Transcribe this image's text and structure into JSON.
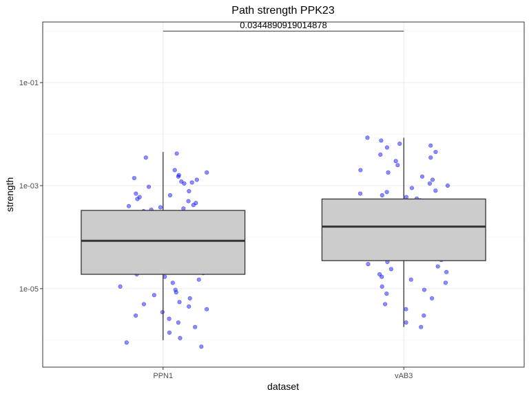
{
  "chart_data": {
    "type": "box",
    "title": "Path strength PPK23",
    "xlabel": "dataset",
    "ylabel": "strength",
    "y_scale": "log10",
    "ylim": [
      3e-07,
      1.5
    ],
    "y_ticks": [
      1e-05,
      0.001,
      0.1
    ],
    "y_tick_labels": [
      "1e-05",
      "1e-03",
      "1e-01"
    ],
    "grid": true,
    "categories": [
      "PPN1",
      "vAB3"
    ],
    "boxes": [
      {
        "category": "PPN1",
        "whisker_low": 1e-06,
        "q1": 1.9e-05,
        "median": 8.5e-05,
        "q3": 0.00033,
        "whisker_high": 0.0045
      },
      {
        "category": "vAB3",
        "whisker_low": 1.8e-06,
        "q1": 3.5e-05,
        "median": 0.00016,
        "q3": 0.00055,
        "whisker_high": 0.0085
      }
    ],
    "annotation": {
      "text": "0.0344890919014878",
      "from": "PPN1",
      "to": "vAB3",
      "y": 1.0
    },
    "point_color": "#0000ff",
    "box_fill": "#cccccc",
    "points": [
      {
        "category": "PPN1",
        "values": [
          0.0042,
          0.0035,
          0.002,
          0.0018,
          0.0016,
          0.0015,
          0.0014,
          0.0013,
          0.0012,
          0.00115,
          0.0011,
          0.00095,
          0.00078,
          0.0007,
          0.00065,
          0.0006,
          0.00055,
          0.0005,
          0.00046,
          0.00042,
          0.0004,
          0.00038,
          0.00036,
          0.00034,
          0.00032,
          0.0003,
          0.00028,
          0.00027,
          0.00026,
          0.00025,
          0.00024,
          0.00023,
          0.00022,
          0.00021,
          0.0002,
          0.00019,
          0.00018,
          0.00017,
          0.00016,
          0.00015,
          0.000145,
          0.00014,
          0.000135,
          0.00013,
          0.000125,
          0.00012,
          0.000115,
          0.00011,
          0.000105,
          0.0001,
          9.6e-05,
          9.2e-05,
          8.8e-05,
          8.4e-05,
          8e-05,
          7.7e-05,
          7.4e-05,
          7.1e-05,
          6.8e-05,
          6.5e-05,
          6.2e-05,
          6e-05,
          5.8e-05,
          5.6e-05,
          5.4e-05,
          5.2e-05,
          5e-05,
          4.8e-05,
          4.6e-05,
          4.4e-05,
          4.2e-05,
          4e-05,
          3.8e-05,
          3.6e-05,
          3.4e-05,
          3.2e-05,
          3e-05,
          2.8e-05,
          2.6e-05,
          2.4e-05,
          2.2e-05,
          2e-05,
          1.9e-05,
          1.7e-05,
          1.5e-05,
          1.3e-05,
          1.1e-05,
          9.5e-06,
          8.5e-06,
          7.5e-06,
          6.5e-06,
          5.5e-06,
          5e-06,
          4.5e-06,
          4e-06,
          3.5e-06,
          3e-06,
          2.6e-06,
          2.2e-06,
          1.8e-06,
          1.4e-06,
          1.1e-06,
          9e-07,
          7.5e-07
        ]
      },
      {
        "category": "vAB3",
        "values": [
          0.0085,
          0.0075,
          0.0065,
          0.006,
          0.0055,
          0.0045,
          0.004,
          0.0035,
          0.003,
          0.0025,
          0.002,
          0.0018,
          0.0015,
          0.0013,
          0.0011,
          0.001,
          0.0009,
          0.0008,
          0.00075,
          0.0007,
          0.00065,
          0.0006,
          0.00056,
          0.00052,
          0.00048,
          0.00045,
          0.00042,
          0.0004,
          0.00038,
          0.00036,
          0.00034,
          0.00032,
          0.0003,
          0.00029,
          0.00028,
          0.00027,
          0.00026,
          0.00025,
          0.00024,
          0.00023,
          0.00022,
          0.00021,
          0.0002,
          0.00019,
          0.00018,
          0.00017,
          0.00016,
          0.00015,
          0.00014,
          0.00013,
          0.000125,
          0.00012,
          0.00011,
          0.0001,
          9.5e-05,
          9e-05,
          8.5e-05,
          8e-05,
          7.5e-05,
          7e-05,
          6.5e-05,
          6e-05,
          5.5e-05,
          5e-05,
          4.5e-05,
          4e-05,
          3.6e-05,
          3.3e-05,
          3e-05,
          2.7e-05,
          2.4e-05,
          2.1e-05,
          1.9e-05,
          1.7e-05,
          1.5e-05,
          1.3e-05,
          1.1e-05,
          9.5e-06,
          8e-06,
          6.5e-06,
          5e-06,
          4e-06,
          3e-06,
          2.2e-06,
          1.8e-06
        ]
      }
    ]
  }
}
